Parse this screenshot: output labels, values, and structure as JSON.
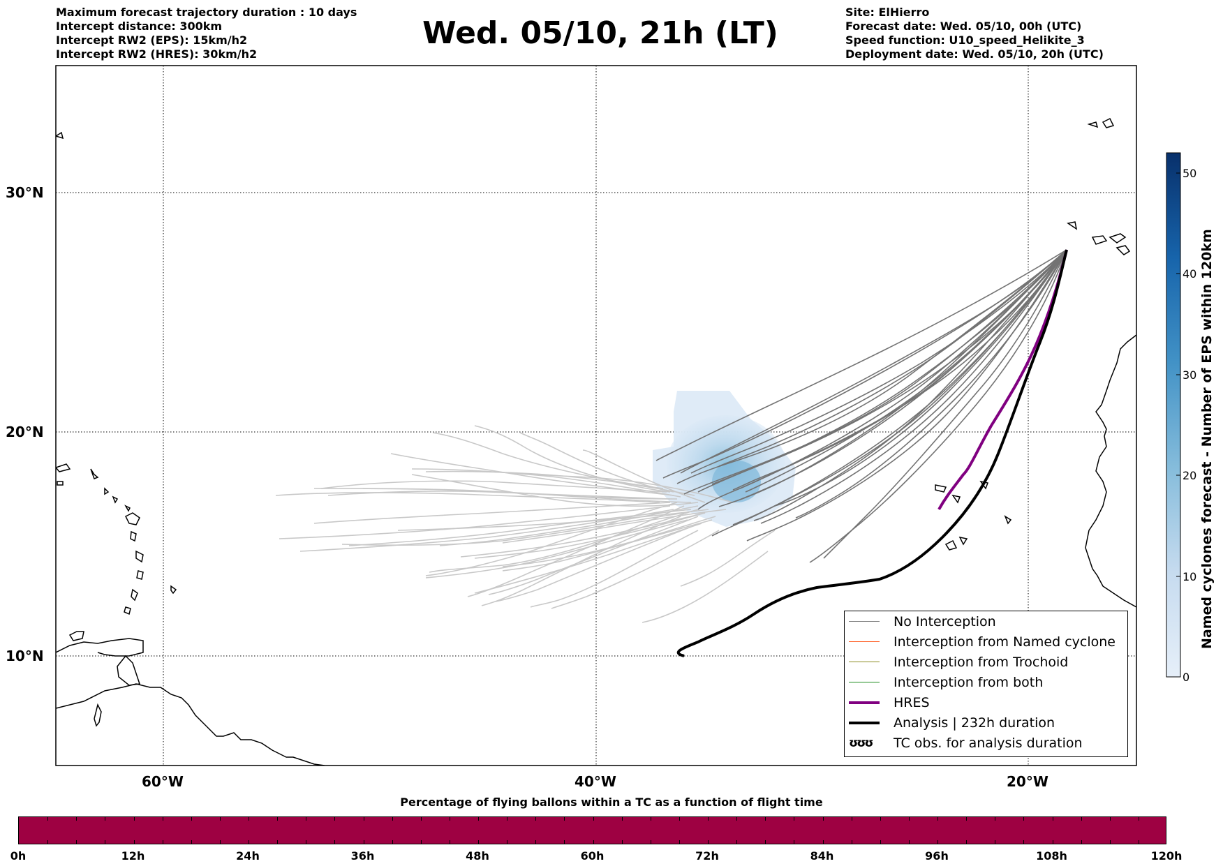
{
  "header_left": [
    "Maximum forecast trajectory duration : 10 days",
    "Intercept distance: 300km",
    "Intercept RW2 (EPS):  15km/h2",
    "Intercept RW2 (HRES): 30km/h2"
  ],
  "header_right": [
    "Site: ElHierro",
    "Forecast date: Wed. 05/10, 00h (UTC)",
    "Speed function: U10_speed_Helikite_3",
    "Deployment date: Wed. 05/10, 20h (UTC)"
  ],
  "title": "Wed. 05/10, 21h (LT)",
  "map": {
    "lat_labels": [
      "30°N",
      "20°N",
      "10°N"
    ],
    "lon_labels": [
      "60°W",
      "40°W",
      "20°W"
    ]
  },
  "colorbar": {
    "title": "Named cyclones forecast - Number of EPS within 120km",
    "ticks": [
      "0",
      "10",
      "20",
      "30",
      "40",
      "50"
    ],
    "range": [
      0,
      52
    ],
    "colors": [
      "#e6eff9",
      "#08306b"
    ]
  },
  "legend": {
    "items": [
      {
        "label": "No Interception",
        "color": "#808080"
      },
      {
        "label": "Interception from Named cyclone",
        "color": "#ff5a1e"
      },
      {
        "label": "Interception from Trochoid",
        "color": "#8b8b1e"
      },
      {
        "label": "Interception from both",
        "color": "#1e8b1e"
      },
      {
        "label": "HRES",
        "color": "#800080"
      },
      {
        "label": "Analysis | 232h duration",
        "color": "#000000"
      },
      {
        "label": "TC obs. for analysis duration",
        "color": "#000000",
        "symbol": "ʊʊʊ"
      }
    ]
  },
  "percentage_bar": {
    "title": "Percentage of flying ballons within a TC as a function of flight time",
    "ticks": [
      "0h",
      "12h",
      "24h",
      "36h",
      "48h",
      "60h",
      "72h",
      "84h",
      "96h",
      "108h",
      "120h"
    ],
    "color": "#9e0142"
  }
}
